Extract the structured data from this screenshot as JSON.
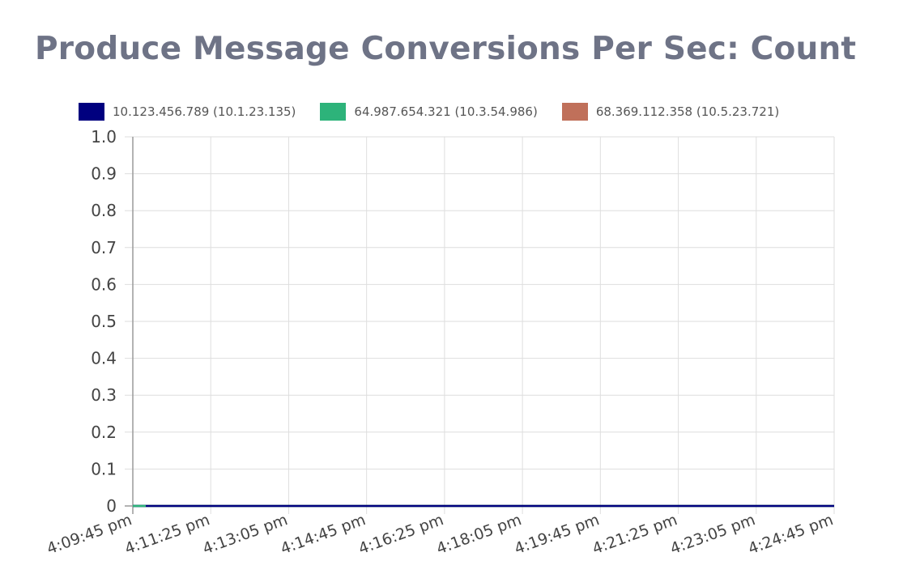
{
  "chart_data": {
    "type": "line",
    "title": "Produce Message Conversions Per Sec: Count",
    "xlabel": "",
    "ylabel": "",
    "x": [
      "4:09:45 pm",
      "4:11:25 pm",
      "4:13:05 pm",
      "4:14:45 pm",
      "4:16:25 pm",
      "4:18:05 pm",
      "4:19:45 pm",
      "4:21:25 pm",
      "4:23:05 pm",
      "4:24:45 pm"
    ],
    "ylim": [
      0,
      1.0
    ],
    "y_ticks": [
      "1.0",
      "0.9",
      "0.8",
      "0.7",
      "0.6",
      "0.5",
      "0.4",
      "0.3",
      "0.2",
      "0.1",
      "0"
    ],
    "grid": true,
    "legend_position": "top",
    "series": [
      {
        "name": "10.123.456.789 (10.1.23.135)",
        "color": "#00007f",
        "values": [
          0,
          0,
          0,
          0,
          0,
          0,
          0,
          0,
          0,
          0
        ]
      },
      {
        "name": "64.987.654.321 (10.3.54.986)",
        "color": "#2db37a",
        "values": [
          0,
          0,
          0,
          0,
          0,
          0,
          0,
          0,
          0,
          0
        ]
      },
      {
        "name": "68.369.112.358 (10.5.23.721)",
        "color": "#c0705a",
        "values": [
          0,
          0,
          0,
          0,
          0,
          0,
          0,
          0,
          0,
          0
        ]
      }
    ]
  }
}
